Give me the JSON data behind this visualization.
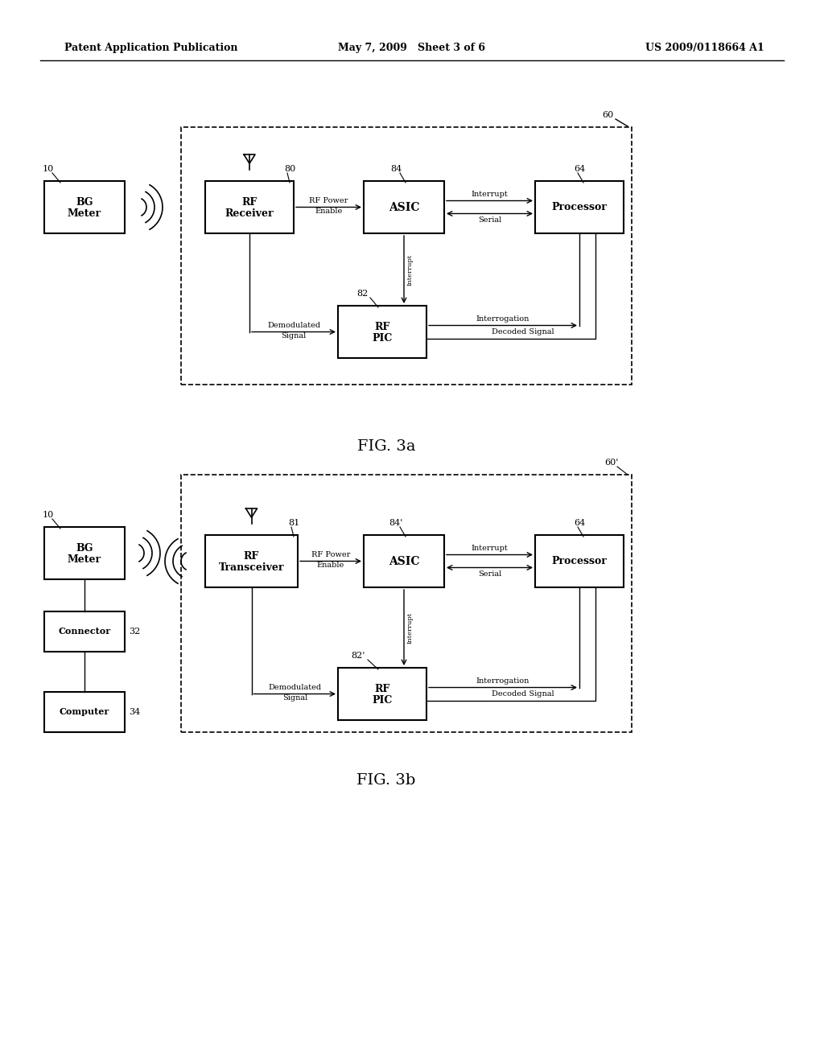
{
  "header_left": "Patent Application Publication",
  "header_mid": "May 7, 2009   Sheet 3 of 6",
  "header_right": "US 2009/0118664 A1",
  "fig3a_label": "FIG. 3a",
  "fig3b_label": "FIG. 3b",
  "background": "#ffffff"
}
